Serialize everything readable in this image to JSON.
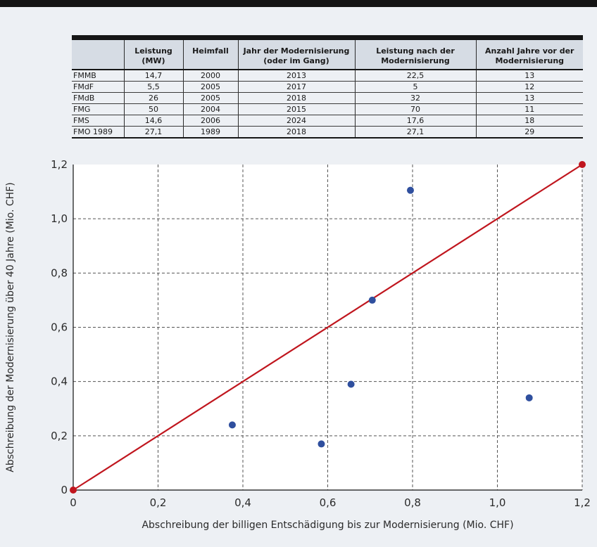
{
  "table": {
    "headers": [
      "",
      "Leistung (MW)",
      "Heimfall",
      "Jahr der Modernisierung (oder im Gang)",
      "Leistung nach der Modernisierung",
      "Anzahl Jahre vor der Modernisierung"
    ],
    "rows": [
      [
        "FMMB",
        "14,7",
        "2000",
        "2013",
        "22,5",
        "13"
      ],
      [
        "FMdF",
        "5,5",
        "2005",
        "2017",
        "5",
        "12"
      ],
      [
        "FMdB",
        "26",
        "2005",
        "2018",
        "32",
        "13"
      ],
      [
        "FMG",
        "50",
        "2004",
        "2015",
        "70",
        "11"
      ],
      [
        "FMS",
        "14,6",
        "2006",
        "2024",
        "17,6",
        "18"
      ],
      [
        "FMO 1989",
        "27,1",
        "1989",
        "2018",
        "27,1",
        "29"
      ]
    ]
  },
  "chart_data": {
    "type": "scatter",
    "title": "",
    "xlabel": "Abschreibung der billigen Entschädigung bis zur Modernisierung (Mio. CHF)",
    "ylabel": "Abschreibung der Modernisierung über 40 Jahre (Mio. CHF)",
    "xlim": [
      0,
      1.2
    ],
    "ylim": [
      0,
      1.2
    ],
    "x_ticks": [
      0,
      0.2,
      0.4,
      0.6,
      0.8,
      1.0,
      1.2
    ],
    "x_tick_labels": [
      "0",
      "0,2",
      "0,4",
      "0,6",
      "0,8",
      "1,0",
      "1,2"
    ],
    "y_ticks": [
      0,
      0.2,
      0.4,
      0.6,
      0.8,
      1.0,
      1.2
    ],
    "y_tick_labels": [
      "0",
      "0,2",
      "0,4",
      "0,6",
      "0,8",
      "1,0",
      "1,2"
    ],
    "grid": true,
    "series": [
      {
        "color": "#2f4f9e",
        "points": [
          [
            0.375,
            0.24
          ],
          [
            0.585,
            0.17
          ],
          [
            0.655,
            0.39
          ],
          [
            0.705,
            0.7
          ],
          [
            0.795,
            1.105
          ],
          [
            1.075,
            0.34
          ]
        ]
      }
    ],
    "reference_line": {
      "color": "#c0161e",
      "points": [
        [
          0,
          0
        ],
        [
          1.2,
          1.2
        ]
      ]
    }
  },
  "colors": {
    "plot_background": "#ffffff",
    "page_background": "#edf0f4",
    "table_header": "#d6dce4"
  }
}
